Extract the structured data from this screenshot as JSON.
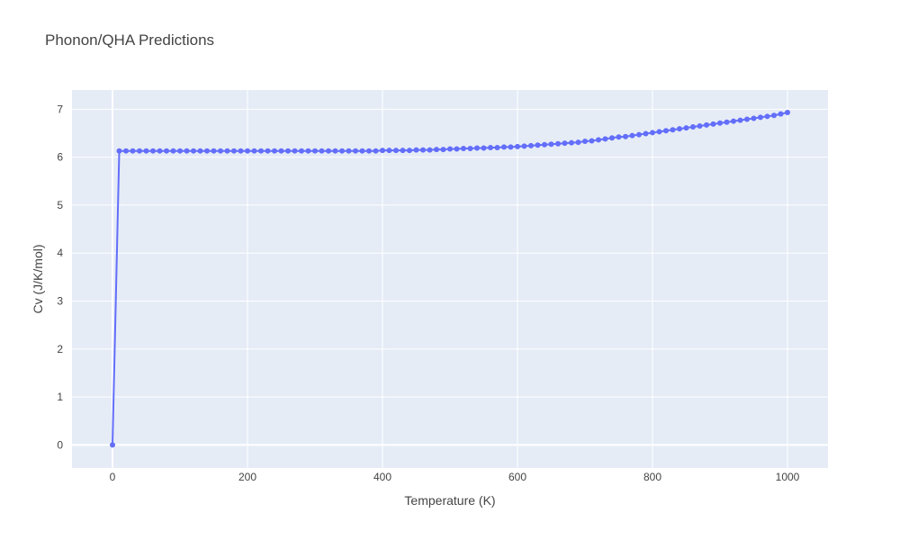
{
  "chart_data": {
    "type": "line",
    "title": "Phonon/QHA Predictions",
    "xlabel": "Temperature (K)",
    "ylabel": "Cv (J/K/mol)",
    "xlim": [
      -60,
      1060
    ],
    "ylim": [
      -0.48,
      7.4
    ],
    "xticks": [
      0,
      200,
      400,
      600,
      800,
      1000
    ],
    "yticks": [
      0,
      1,
      2,
      3,
      4,
      5,
      6,
      7
    ],
    "grid": true,
    "line_color": "#636efa",
    "background_color": "#e5ecf6",
    "series": [
      {
        "x": [
          0,
          10,
          20,
          30,
          40,
          50,
          60,
          70,
          80,
          90,
          100,
          110,
          120,
          130,
          140,
          150,
          160,
          170,
          180,
          190,
          200,
          210,
          220,
          230,
          240,
          250,
          260,
          270,
          280,
          290,
          300,
          310,
          320,
          330,
          340,
          350,
          360,
          370,
          380,
          390,
          400,
          410,
          420,
          430,
          440,
          450,
          460,
          470,
          480,
          490,
          500,
          510,
          520,
          530,
          540,
          550,
          560,
          570,
          580,
          590,
          600,
          610,
          620,
          630,
          640,
          650,
          660,
          670,
          680,
          690,
          700,
          710,
          720,
          730,
          740,
          750,
          760,
          770,
          780,
          790,
          800,
          810,
          820,
          830,
          840,
          850,
          860,
          870,
          880,
          890,
          900,
          910,
          920,
          930,
          940,
          950,
          960,
          970,
          980,
          990,
          1000
        ],
        "y": [
          0,
          6.13,
          6.13,
          6.13,
          6.13,
          6.13,
          6.13,
          6.13,
          6.13,
          6.13,
          6.13,
          6.13,
          6.13,
          6.13,
          6.13,
          6.13,
          6.13,
          6.13,
          6.13,
          6.13,
          6.13,
          6.13,
          6.13,
          6.13,
          6.13,
          6.13,
          6.13,
          6.13,
          6.13,
          6.13,
          6.13,
          6.13,
          6.13,
          6.13,
          6.13,
          6.13,
          6.13,
          6.13,
          6.13,
          6.13,
          6.14,
          6.14,
          6.14,
          6.14,
          6.14,
          6.15,
          6.15,
          6.15,
          6.16,
          6.16,
          6.17,
          6.17,
          6.18,
          6.18,
          6.19,
          6.19,
          6.2,
          6.2,
          6.21,
          6.21,
          6.22,
          6.23,
          6.24,
          6.25,
          6.26,
          6.27,
          6.28,
          6.29,
          6.3,
          6.31,
          6.33,
          6.34,
          6.36,
          6.38,
          6.4,
          6.42,
          6.43,
          6.45,
          6.47,
          6.49,
          6.51,
          6.53,
          6.55,
          6.57,
          6.59,
          6.61,
          6.63,
          6.65,
          6.67,
          6.69,
          6.71,
          6.73,
          6.75,
          6.77,
          6.79,
          6.81,
          6.83,
          6.85,
          6.87,
          6.9,
          6.93
        ]
      }
    ]
  }
}
